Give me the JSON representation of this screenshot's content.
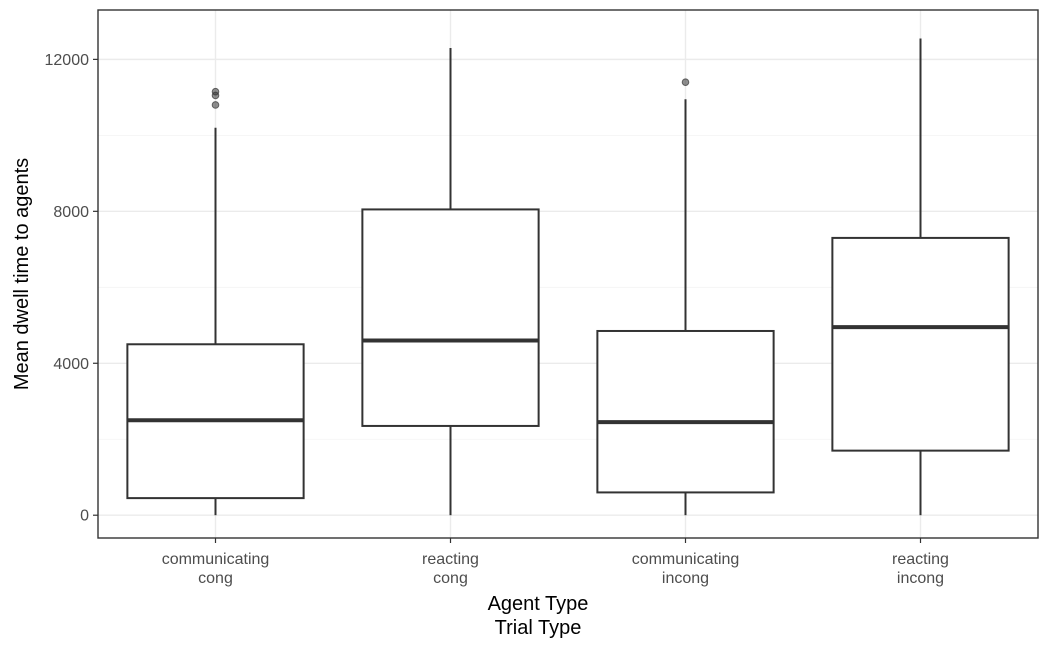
{
  "chart_data": {
    "type": "box",
    "xlabel_lines": [
      "Agent Type",
      "Trial Type"
    ],
    "ylabel": "Mean dwell time to agents",
    "ylim": [
      -600,
      13300
    ],
    "yticks": [
      0,
      4000,
      8000,
      12000
    ],
    "y_minor_ticks": [
      2000,
      6000,
      10000
    ],
    "grid": true,
    "categories": [
      {
        "lines": [
          "communicating",
          "cong"
        ]
      },
      {
        "lines": [
          "reacting",
          "cong"
        ]
      },
      {
        "lines": [
          "communicating",
          "incong"
        ]
      },
      {
        "lines": [
          "reacting",
          "incong"
        ]
      }
    ],
    "boxes": [
      {
        "whisker_low": 0,
        "q1": 450,
        "median": 2500,
        "q3": 4500,
        "whisker_high": 10200,
        "outliers": [
          10800,
          11050,
          11150
        ]
      },
      {
        "whisker_low": 0,
        "q1": 2350,
        "median": 4600,
        "q3": 8050,
        "whisker_high": 12300,
        "outliers": []
      },
      {
        "whisker_low": 0,
        "q1": 600,
        "median": 2450,
        "q3": 4850,
        "whisker_high": 10950,
        "outliers": [
          11400
        ]
      },
      {
        "whisker_low": 0,
        "q1": 1700,
        "median": 4950,
        "q3": 7300,
        "whisker_high": 12550,
        "outliers": []
      }
    ]
  }
}
